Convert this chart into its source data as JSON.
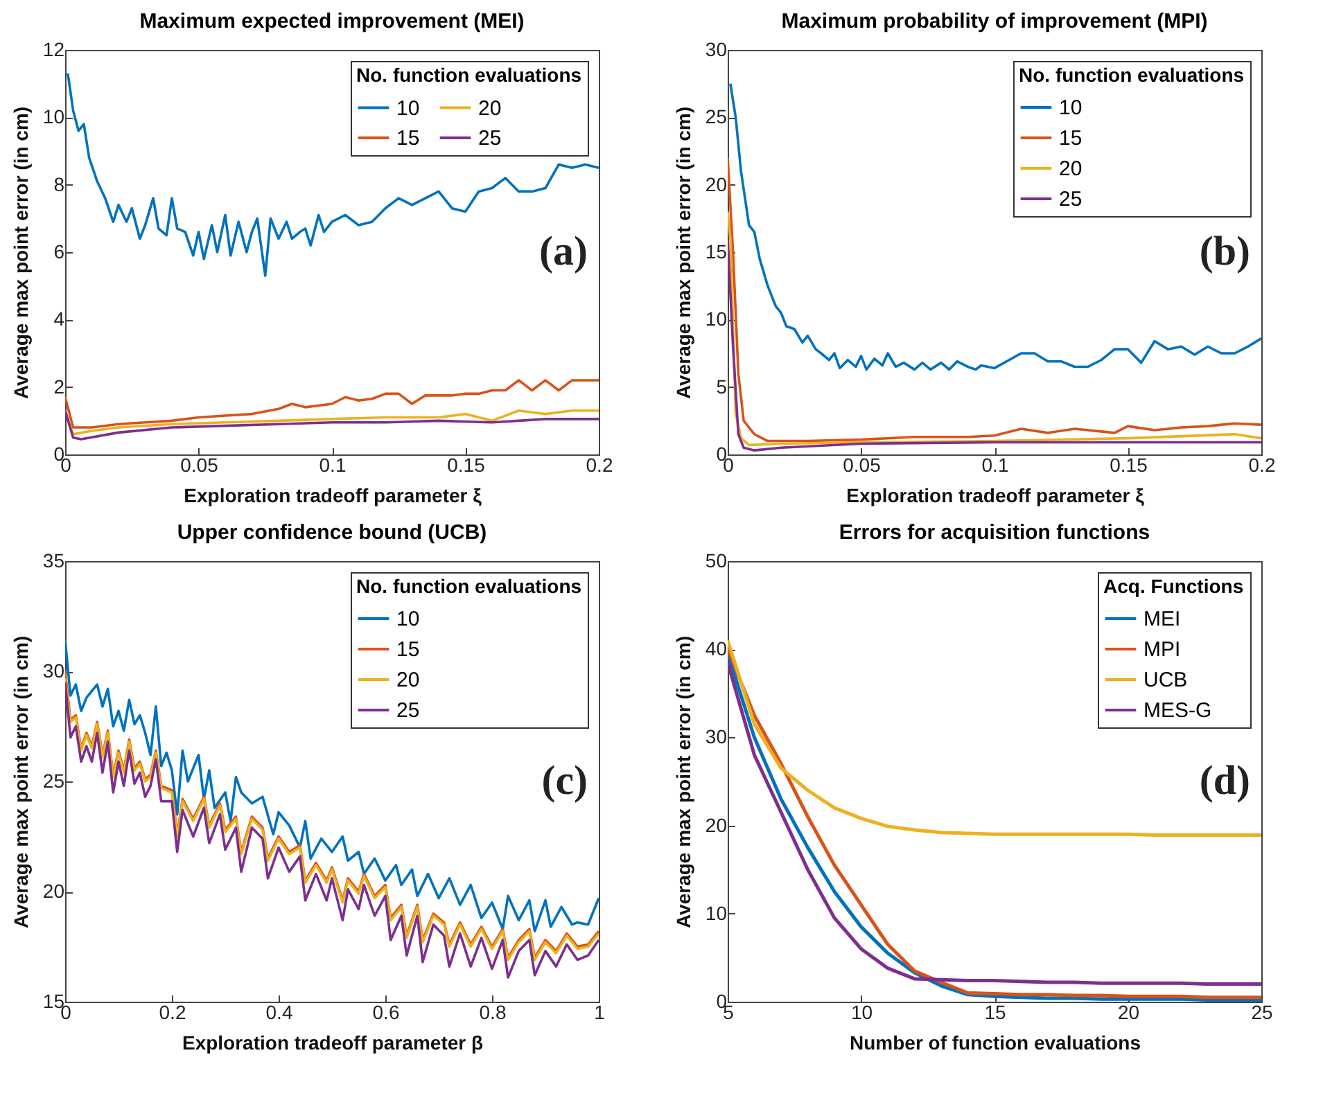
{
  "chart_data": [
    {
      "type": "line",
      "title": "Maximum expected improvement (MEI)",
      "xlabel": "Exploration tradeoff parameter ξ",
      "ylabel": "Average max point error (in cm)",
      "legend_title": "No. function evaluations",
      "legend": "top right",
      "grid": false,
      "annotations": [
        "(a)"
      ],
      "xlim": [
        0,
        0.2
      ],
      "xticks": [
        0,
        0.05,
        0.1,
        0.15,
        0.2
      ],
      "ylim": [
        0,
        12
      ],
      "yticks": [
        0,
        2,
        4,
        6,
        8,
        10,
        12
      ],
      "series": [
        {
          "name": "10",
          "color": "#0072bd",
          "x": [
            0.001,
            0.003,
            0.005,
            0.007,
            0.009,
            0.012,
            0.015,
            0.018,
            0.02,
            0.023,
            0.025,
            0.028,
            0.03,
            0.033,
            0.035,
            0.038,
            0.04,
            0.042,
            0.045,
            0.048,
            0.05,
            0.052,
            0.055,
            0.057,
            0.06,
            0.062,
            0.065,
            0.068,
            0.07,
            0.072,
            0.075,
            0.077,
            0.08,
            0.083,
            0.085,
            0.088,
            0.09,
            0.092,
            0.095,
            0.097,
            0.1,
            0.105,
            0.11,
            0.115,
            0.12,
            0.125,
            0.13,
            0.135,
            0.14,
            0.145,
            0.15,
            0.155,
            0.16,
            0.165,
            0.17,
            0.175,
            0.18,
            0.185,
            0.19,
            0.195,
            0.2
          ],
          "values": [
            11.3,
            10.2,
            9.6,
            9.8,
            8.8,
            8.1,
            7.6,
            6.9,
            7.4,
            6.9,
            7.3,
            6.4,
            6.8,
            7.6,
            6.7,
            6.5,
            7.6,
            6.7,
            6.6,
            5.9,
            6.6,
            5.8,
            6.8,
            6.0,
            7.1,
            5.9,
            6.9,
            6.0,
            6.6,
            7.0,
            5.3,
            7.0,
            6.4,
            6.9,
            6.4,
            6.6,
            6.7,
            6.2,
            7.1,
            6.6,
            6.9,
            7.1,
            6.8,
            6.9,
            7.3,
            7.6,
            7.4,
            7.6,
            7.8,
            7.3,
            7.2,
            7.8,
            7.9,
            8.2,
            7.8,
            7.8,
            7.9,
            8.6,
            8.5,
            8.6,
            8.5
          ]
        },
        {
          "name": "15",
          "color": "#d95319",
          "x": [
            0,
            0.003,
            0.01,
            0.02,
            0.03,
            0.04,
            0.05,
            0.06,
            0.07,
            0.08,
            0.085,
            0.09,
            0.1,
            0.105,
            0.11,
            0.115,
            0.12,
            0.125,
            0.13,
            0.135,
            0.14,
            0.145,
            0.15,
            0.155,
            0.16,
            0.165,
            0.17,
            0.175,
            0.18,
            0.185,
            0.19,
            0.2
          ],
          "values": [
            1.7,
            0.8,
            0.8,
            0.9,
            0.95,
            1.0,
            1.1,
            1.15,
            1.2,
            1.35,
            1.5,
            1.4,
            1.5,
            1.7,
            1.6,
            1.65,
            1.8,
            1.8,
            1.5,
            1.75,
            1.75,
            1.75,
            1.8,
            1.8,
            1.9,
            1.9,
            2.2,
            1.9,
            2.2,
            1.9,
            2.2,
            2.2
          ]
        },
        {
          "name": "20",
          "color": "#edb120",
          "x": [
            0,
            0.003,
            0.01,
            0.02,
            0.04,
            0.06,
            0.08,
            0.1,
            0.12,
            0.14,
            0.15,
            0.16,
            0.17,
            0.18,
            0.19,
            0.2
          ],
          "values": [
            1.3,
            0.6,
            0.7,
            0.8,
            0.9,
            0.95,
            1.0,
            1.05,
            1.1,
            1.1,
            1.2,
            1.0,
            1.3,
            1.2,
            1.3,
            1.3
          ]
        },
        {
          "name": "25",
          "color": "#7e2f8e",
          "x": [
            0,
            0.003,
            0.006,
            0.02,
            0.04,
            0.06,
            0.08,
            0.1,
            0.12,
            0.14,
            0.16,
            0.18,
            0.2
          ],
          "values": [
            1.3,
            0.5,
            0.45,
            0.65,
            0.8,
            0.85,
            0.9,
            0.95,
            0.95,
            1.0,
            0.95,
            1.05,
            1.05
          ]
        }
      ]
    },
    {
      "type": "line",
      "title": "Maximum probability of improvement (MPI)",
      "xlabel": "Exploration tradeoff parameter ξ",
      "ylabel": "Average max point error (in cm)",
      "legend_title": "No. function evaluations",
      "legend": "top right",
      "grid": false,
      "annotations": [
        "(b)"
      ],
      "xlim": [
        0,
        0.2
      ],
      "xticks": [
        0,
        0.05,
        0.1,
        0.15,
        0.2
      ],
      "ylim": [
        0,
        30
      ],
      "yticks": [
        0,
        5,
        10,
        15,
        20,
        25,
        30
      ],
      "series": [
        {
          "name": "10",
          "color": "#0072bd",
          "x": [
            0.001,
            0.003,
            0.005,
            0.008,
            0.01,
            0.012,
            0.015,
            0.018,
            0.02,
            0.022,
            0.025,
            0.028,
            0.03,
            0.033,
            0.035,
            0.038,
            0.04,
            0.042,
            0.045,
            0.048,
            0.05,
            0.052,
            0.055,
            0.058,
            0.06,
            0.063,
            0.066,
            0.07,
            0.073,
            0.076,
            0.08,
            0.083,
            0.086,
            0.09,
            0.093,
            0.095,
            0.1,
            0.11,
            0.115,
            0.12,
            0.125,
            0.13,
            0.135,
            0.14,
            0.145,
            0.15,
            0.155,
            0.16,
            0.165,
            0.17,
            0.175,
            0.18,
            0.185,
            0.19,
            0.195,
            0.2
          ],
          "values": [
            27.5,
            25,
            21,
            17,
            16.5,
            14.5,
            12.5,
            11,
            10.5,
            9.5,
            9.3,
            8.3,
            8.8,
            7.8,
            7.5,
            7.0,
            7.5,
            6.4,
            7.0,
            6.5,
            7.3,
            6.3,
            7.1,
            6.6,
            7.5,
            6.5,
            6.8,
            6.3,
            6.8,
            6.3,
            6.8,
            6.3,
            6.9,
            6.5,
            6.3,
            6.6,
            6.4,
            7.5,
            7.5,
            6.9,
            6.9,
            6.5,
            6.5,
            7.0,
            7.8,
            7.8,
            6.8,
            8.4,
            7.8,
            8.0,
            7.4,
            8.0,
            7.5,
            7.5,
            8.0,
            8.6
          ]
        },
        {
          "name": "15",
          "color": "#d95319",
          "x": [
            0,
            0.002,
            0.004,
            0.006,
            0.01,
            0.015,
            0.03,
            0.05,
            0.07,
            0.09,
            0.1,
            0.11,
            0.12,
            0.13,
            0.14,
            0.145,
            0.15,
            0.16,
            0.17,
            0.18,
            0.19,
            0.2
          ],
          "values": [
            22,
            15,
            6,
            2.5,
            1.5,
            1.0,
            1.0,
            1.1,
            1.3,
            1.3,
            1.4,
            1.9,
            1.6,
            1.9,
            1.7,
            1.6,
            2.1,
            1.8,
            2.0,
            2.1,
            2.3,
            2.2
          ]
        },
        {
          "name": "20",
          "color": "#edb120",
          "x": [
            0,
            0.001,
            0.003,
            0.005,
            0.008,
            0.02,
            0.05,
            0.1,
            0.15,
            0.19,
            0.2
          ],
          "values": [
            18,
            16,
            3,
            1.2,
            0.7,
            0.8,
            0.9,
            1.0,
            1.2,
            1.5,
            1.2
          ]
        },
        {
          "name": "25",
          "color": "#7e2f8e",
          "x": [
            0,
            0.002,
            0.004,
            0.006,
            0.01,
            0.02,
            0.05,
            0.1,
            0.15,
            0.2
          ],
          "values": [
            16,
            8,
            1.5,
            0.5,
            0.3,
            0.5,
            0.8,
            0.9,
            0.9,
            0.9
          ]
        }
      ]
    },
    {
      "type": "line",
      "title": "Upper confidence bound (UCB)",
      "xlabel": "Exploration tradeoff parameter β",
      "ylabel": "Average max point error (in cm)",
      "legend_title": "No. function evaluations",
      "legend": "top right",
      "grid": false,
      "annotations": [
        "(c)"
      ],
      "xlim": [
        0,
        1
      ],
      "xticks": [
        0,
        0.2,
        0.4,
        0.6,
        0.8,
        1
      ],
      "ylim": [
        15,
        35
      ],
      "yticks": [
        15,
        20,
        25,
        30,
        35
      ],
      "series": [
        {
          "name": "10",
          "color": "#0072bd",
          "x": [
            0,
            0.01,
            0.02,
            0.03,
            0.04,
            0.06,
            0.07,
            0.08,
            0.09,
            0.1,
            0.11,
            0.12,
            0.13,
            0.14,
            0.15,
            0.16,
            0.17,
            0.18,
            0.19,
            0.2,
            0.21,
            0.22,
            0.23,
            0.25,
            0.26,
            0.27,
            0.28,
            0.3,
            0.31,
            0.32,
            0.33,
            0.35,
            0.37,
            0.39,
            0.4,
            0.42,
            0.44,
            0.45,
            0.46,
            0.48,
            0.5,
            0.52,
            0.53,
            0.55,
            0.56,
            0.58,
            0.6,
            0.62,
            0.63,
            0.65,
            0.66,
            0.68,
            0.7,
            0.72,
            0.74,
            0.76,
            0.78,
            0.8,
            0.82,
            0.83,
            0.85,
            0.87,
            0.88,
            0.9,
            0.91,
            0.93,
            0.95,
            0.96,
            0.98,
            1
          ],
          "values": [
            31.4,
            28.9,
            29.4,
            28.2,
            28.8,
            29.4,
            28.4,
            29.2,
            27.5,
            28.2,
            27.3,
            28.7,
            27.6,
            28.0,
            27.2,
            26.2,
            28.4,
            25.7,
            26.3,
            25.5,
            23.5,
            26.4,
            25.0,
            26.2,
            24.2,
            25.5,
            23.8,
            24.5,
            23.2,
            25.2,
            24.5,
            24.0,
            24.3,
            22.6,
            23.6,
            23.0,
            22.0,
            23.2,
            21.5,
            22.4,
            21.8,
            22.5,
            21.4,
            21.8,
            20.8,
            21.5,
            20.5,
            21.2,
            20.3,
            21.0,
            19.8,
            20.8,
            19.7,
            20.6,
            19.4,
            20.3,
            18.8,
            19.5,
            18.3,
            19.8,
            18.7,
            19.6,
            18.2,
            19.6,
            18.4,
            19.3,
            18.5,
            18.6,
            18.5,
            19.7
          ]
        },
        {
          "name": "15",
          "color": "#d95319",
          "x": [
            0,
            0.01,
            0.02,
            0.03,
            0.04,
            0.05,
            0.06,
            0.07,
            0.08,
            0.09,
            0.1,
            0.11,
            0.12,
            0.13,
            0.14,
            0.15,
            0.16,
            0.17,
            0.18,
            0.2,
            0.21,
            0.22,
            0.24,
            0.26,
            0.27,
            0.29,
            0.3,
            0.32,
            0.33,
            0.35,
            0.37,
            0.38,
            0.4,
            0.42,
            0.44,
            0.45,
            0.47,
            0.49,
            0.5,
            0.52,
            0.53,
            0.55,
            0.56,
            0.58,
            0.6,
            0.61,
            0.63,
            0.64,
            0.66,
            0.67,
            0.69,
            0.71,
            0.72,
            0.74,
            0.76,
            0.78,
            0.8,
            0.82,
            0.83,
            0.85,
            0.87,
            0.88,
            0.9,
            0.92,
            0.94,
            0.96,
            0.98,
            1
          ],
          "values": [
            30,
            27.8,
            28.0,
            26.5,
            27.2,
            26.6,
            27.7,
            26.2,
            27.3,
            25.3,
            26.4,
            25.5,
            26.9,
            25.6,
            25.9,
            25.1,
            25.3,
            26.4,
            24.8,
            24.6,
            22.6,
            24.2,
            23.3,
            24.3,
            23.0,
            24.0,
            22.8,
            23.4,
            21.8,
            23.4,
            22.9,
            21.5,
            22.5,
            21.8,
            22.1,
            20.5,
            21.3,
            20.5,
            21.1,
            19.6,
            20.6,
            20.0,
            20.8,
            19.8,
            20.3,
            18.8,
            19.4,
            18.0,
            19.4,
            17.8,
            19.0,
            18.6,
            17.6,
            18.6,
            17.6,
            18.4,
            17.5,
            18.3,
            17.0,
            17.8,
            18.3,
            17.0,
            17.8,
            17.3,
            18.1,
            17.5,
            17.6,
            18.2
          ]
        },
        {
          "name": "20",
          "color": "#edb120",
          "x": [
            0,
            0.01,
            0.02,
            0.03,
            0.04,
            0.05,
            0.06,
            0.07,
            0.08,
            0.09,
            0.1,
            0.11,
            0.12,
            0.13,
            0.14,
            0.15,
            0.16,
            0.17,
            0.18,
            0.2,
            0.21,
            0.22,
            0.24,
            0.26,
            0.27,
            0.29,
            0.3,
            0.32,
            0.33,
            0.35,
            0.37,
            0.38,
            0.4,
            0.42,
            0.44,
            0.45,
            0.47,
            0.49,
            0.5,
            0.52,
            0.53,
            0.55,
            0.56,
            0.58,
            0.6,
            0.61,
            0.63,
            0.64,
            0.66,
            0.67,
            0.69,
            0.71,
            0.72,
            0.74,
            0.76,
            0.78,
            0.8,
            0.82,
            0.83,
            0.85,
            0.87,
            0.88,
            0.9,
            0.92,
            0.94,
            0.96,
            0.98,
            1
          ],
          "values": [
            29.7,
            27.7,
            27.9,
            26.4,
            27.1,
            26.5,
            27.6,
            26.1,
            27.2,
            25.2,
            26.3,
            25.4,
            26.8,
            25.5,
            25.8,
            25.0,
            25.2,
            26.3,
            24.7,
            24.5,
            22.5,
            24.1,
            23.2,
            24.2,
            22.9,
            23.9,
            22.7,
            23.3,
            21.7,
            23.3,
            22.8,
            21.4,
            22.4,
            21.7,
            22.0,
            20.4,
            21.2,
            20.4,
            21.0,
            19.5,
            20.5,
            19.9,
            20.7,
            19.7,
            20.2,
            18.7,
            19.3,
            17.9,
            19.3,
            17.7,
            18.9,
            18.5,
            17.5,
            18.5,
            17.5,
            18.3,
            17.4,
            18.2,
            16.9,
            17.7,
            18.2,
            16.9,
            17.7,
            17.2,
            18.0,
            17.4,
            17.5,
            18.1
          ]
        },
        {
          "name": "25",
          "color": "#7e2f8e",
          "x": [
            0,
            0.01,
            0.02,
            0.03,
            0.04,
            0.05,
            0.06,
            0.07,
            0.08,
            0.09,
            0.1,
            0.11,
            0.12,
            0.13,
            0.14,
            0.15,
            0.16,
            0.17,
            0.18,
            0.2,
            0.21,
            0.22,
            0.24,
            0.26,
            0.27,
            0.29,
            0.3,
            0.32,
            0.33,
            0.35,
            0.37,
            0.38,
            0.4,
            0.42,
            0.44,
            0.45,
            0.47,
            0.49,
            0.5,
            0.52,
            0.53,
            0.55,
            0.56,
            0.58,
            0.6,
            0.61,
            0.63,
            0.64,
            0.66,
            0.67,
            0.69,
            0.71,
            0.72,
            0.74,
            0.76,
            0.78,
            0.8,
            0.82,
            0.83,
            0.85,
            0.87,
            0.88,
            0.9,
            0.92,
            0.94,
            0.96,
            0.98,
            1
          ],
          "values": [
            29.5,
            27.0,
            27.5,
            25.9,
            26.6,
            25.9,
            27.2,
            25.4,
            26.8,
            24.5,
            25.9,
            24.8,
            26.4,
            24.9,
            25.4,
            24.3,
            24.8,
            26.0,
            24.1,
            24.1,
            21.8,
            23.7,
            22.5,
            23.8,
            22.2,
            23.5,
            21.9,
            22.9,
            20.9,
            22.9,
            22.4,
            20.6,
            22.0,
            20.9,
            21.6,
            19.6,
            20.8,
            19.6,
            20.6,
            18.7,
            20.1,
            19.2,
            20.3,
            18.9,
            19.8,
            17.8,
            18.9,
            17.1,
            18.9,
            16.8,
            18.5,
            18.0,
            16.6,
            18.1,
            16.6,
            17.9,
            16.5,
            17.8,
            16.1,
            17.3,
            17.8,
            16.2,
            17.3,
            16.6,
            17.6,
            16.9,
            17.1,
            17.8
          ]
        }
      ]
    },
    {
      "type": "line",
      "title": "Errors for acquisition functions",
      "xlabel": "Number of function evaluations",
      "ylabel": "Average max point error (in cm)",
      "legend_title": "Acq. Functions",
      "legend": "top right",
      "grid": false,
      "annotations": [
        "(d)"
      ],
      "xlim": [
        5,
        25
      ],
      "xticks": [
        5,
        10,
        15,
        20,
        25
      ],
      "ylim": [
        0,
        50
      ],
      "yticks": [
        0,
        10,
        20,
        30,
        40,
        50
      ],
      "x": [
        5,
        6,
        7,
        8,
        9,
        10,
        11,
        12,
        13,
        14,
        15,
        16,
        17,
        18,
        19,
        20,
        21,
        22,
        23,
        24,
        25
      ],
      "series": [
        {
          "name": "MEI",
          "color": "#0072bd",
          "values": [
            39.5,
            30,
            23,
            17.5,
            12.5,
            8.5,
            5.5,
            3.3,
            1.8,
            0.8,
            0.6,
            0.5,
            0.4,
            0.4,
            0.3,
            0.3,
            0.3,
            0.3,
            0.2,
            0.2,
            0.2
          ]
        },
        {
          "name": "MPI",
          "color": "#d95319",
          "values": [
            40,
            32.5,
            27,
            21,
            15.5,
            11,
            6.5,
            3.5,
            2.2,
            1.0,
            0.9,
            0.8,
            0.8,
            0.7,
            0.7,
            0.6,
            0.6,
            0.6,
            0.5,
            0.5,
            0.5
          ]
        },
        {
          "name": "UCB",
          "color": "#edb120",
          "values": [
            41,
            31.5,
            26.5,
            24,
            22,
            20.8,
            19.9,
            19.5,
            19.2,
            19.1,
            19.0,
            19.0,
            19.0,
            19.0,
            19.0,
            19.0,
            18.9,
            18.9,
            18.9,
            18.9,
            18.9
          ]
        },
        {
          "name": "MES-G",
          "color": "#7e2f8e",
          "values": [
            38.5,
            28,
            21.5,
            15,
            9.5,
            6,
            3.8,
            2.6,
            2.5,
            2.4,
            2.4,
            2.3,
            2.2,
            2.2,
            2.1,
            2.1,
            2.1,
            2.1,
            2.0,
            2.0,
            2.0
          ]
        }
      ]
    }
  ]
}
